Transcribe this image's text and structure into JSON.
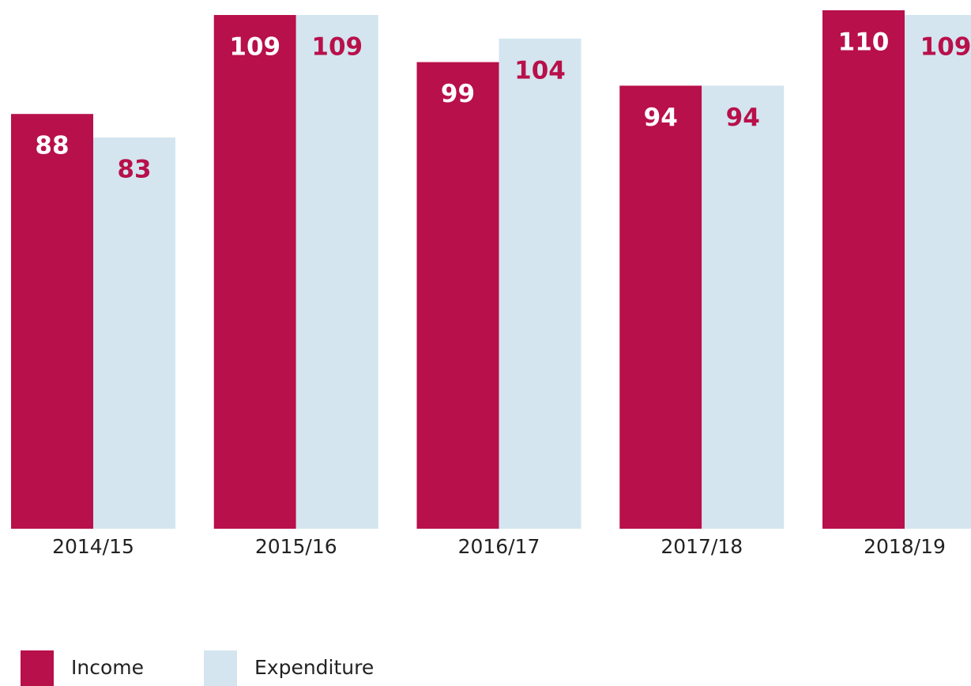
{
  "chart_data": {
    "type": "bar",
    "categories": [
      "2014/15",
      "2015/16",
      "2016/17",
      "2017/18",
      "2018/19"
    ],
    "series": [
      {
        "name": "Income",
        "color": "#b8104a",
        "values": [
          88,
          109,
          99,
          94,
          110
        ]
      },
      {
        "name": "Expenditure",
        "color": "#d4e5ef",
        "values": [
          83,
          109,
          104,
          94,
          109
        ]
      }
    ],
    "ylim": [
      0,
      110
    ]
  }
}
